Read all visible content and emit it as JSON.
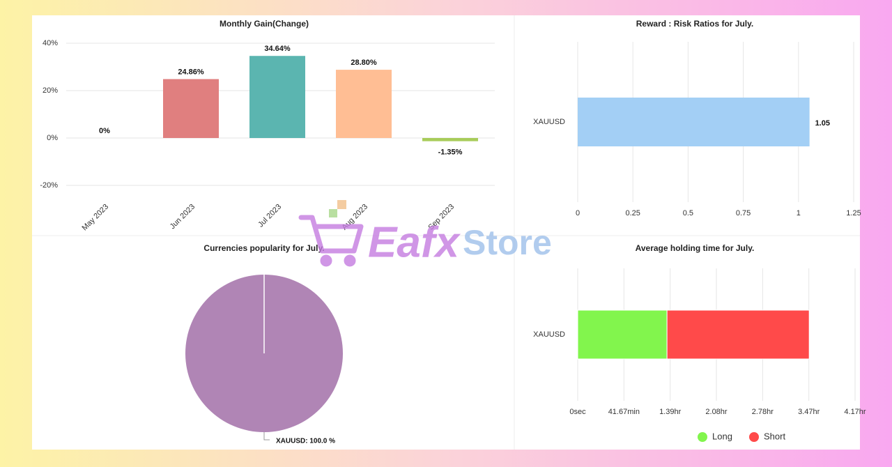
{
  "watermark": {
    "brand": "Eafx",
    "suffix": "Store"
  },
  "chart_data": [
    {
      "type": "bar",
      "title": "Monthly Gain(Change)",
      "categories": [
        "May 2023",
        "Jun 2023",
        "Jul 2023",
        "Aug 2023",
        "Sep 2023"
      ],
      "values": [
        0,
        24.86,
        34.64,
        28.8,
        -1.35
      ],
      "value_labels": [
        "0%",
        "24.86%",
        "34.64%",
        "28.80%",
        "-1.35%"
      ],
      "colors": [
        "#9ecae1",
        "#e07f7f",
        "#5bb5b0",
        "#ffbe94",
        "#a8cc5a"
      ],
      "ylim": [
        -25,
        40
      ],
      "yticks": [
        {
          "value": -20,
          "label": "-20%"
        },
        {
          "value": 0,
          "label": "0%"
        },
        {
          "value": 20,
          "label": "20%"
        },
        {
          "value": 40,
          "label": "40%"
        }
      ],
      "grid": true
    },
    {
      "type": "bar",
      "orientation": "horizontal",
      "title": "Reward : Risk Ratios for July.",
      "categories": [
        "XAUUSD"
      ],
      "values": [
        1.05
      ],
      "colors": [
        "#a3cff5"
      ],
      "xlim": [
        0,
        1.25
      ],
      "xticks": [
        0,
        0.25,
        0.5,
        0.75,
        1,
        1.25
      ],
      "grid": true
    },
    {
      "type": "pie",
      "title": "Currencies popularity for July.",
      "categories": [
        "XAUUSD"
      ],
      "values": [
        100
      ],
      "value_labels": [
        "XAUUSD: 100.0 %"
      ],
      "colors": [
        "#b085b5"
      ]
    },
    {
      "type": "bar",
      "orientation": "horizontal",
      "stacked": true,
      "title": "Average holding time for July.",
      "categories": [
        "XAUUSD"
      ],
      "series": [
        {
          "name": "Long",
          "color": "#82f54d",
          "values": [
            4830
          ]
        },
        {
          "name": "Short",
          "color": "#ff4a4a",
          "values": [
            7690
          ]
        }
      ],
      "xlim": [
        0,
        15000
      ],
      "xticks": [
        {
          "value": 0,
          "label": "0sec"
        },
        {
          "value": 2500,
          "label": "41.67min"
        },
        {
          "value": 5000,
          "label": "1.39hr"
        },
        {
          "value": 7500,
          "label": "2.08hr"
        },
        {
          "value": 10000,
          "label": "2.78hr"
        },
        {
          "value": 12500,
          "label": "3.47hr"
        },
        {
          "value": 15000,
          "label": "4.17hr"
        }
      ],
      "grid": true,
      "legend": "bottom"
    }
  ]
}
